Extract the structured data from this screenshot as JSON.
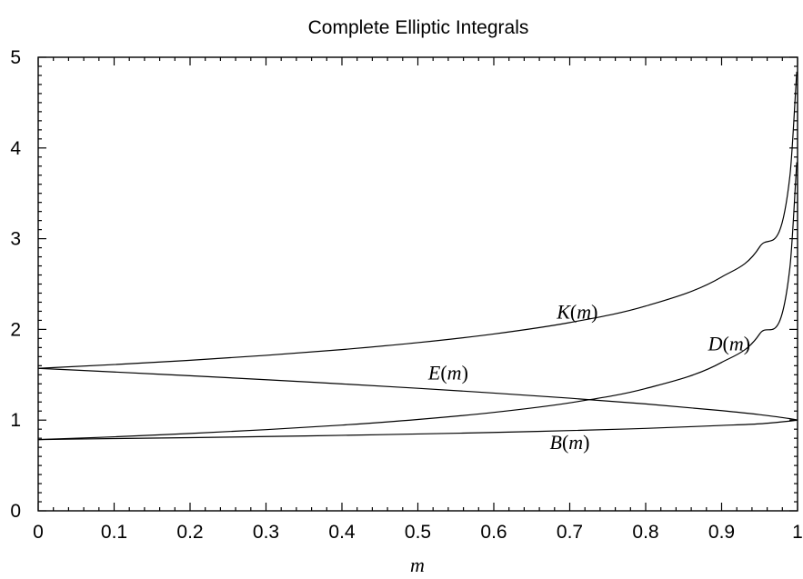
{
  "chart_data": {
    "type": "line",
    "title": "Complete Elliptic Integrals",
    "xlabel": "m",
    "ylabel": "",
    "xlim": [
      0,
      1
    ],
    "ylim": [
      0,
      5
    ],
    "xticks": [
      "0",
      "0.1",
      "0.2",
      "0.3",
      "0.4",
      "0.5",
      "0.6",
      "0.7",
      "0.8",
      "0.9",
      "1"
    ],
    "yticks": [
      "0",
      "1",
      "2",
      "3",
      "4",
      "5"
    ],
    "grid": false,
    "legend": "none",
    "x": [
      0,
      0.1,
      0.2,
      0.3,
      0.4,
      0.5,
      0.6,
      0.7,
      0.8,
      0.9,
      0.95,
      0.99,
      0.999
    ],
    "series": [
      {
        "name": "K",
        "values": [
          1.5708,
          1.6124,
          1.6596,
          1.7139,
          1.7775,
          1.8541,
          1.9496,
          2.0754,
          2.2572,
          2.5781,
          2.9083,
          3.6956,
          4.8411
        ]
      },
      {
        "name": "E",
        "values": [
          1.5708,
          1.5308,
          1.489,
          1.4454,
          1.3994,
          1.3506,
          1.2984,
          1.2417,
          1.1785,
          1.1048,
          1.0605,
          1.016,
          1.0021
        ]
      },
      {
        "name": "D",
        "values": [
          0.7854,
          0.816,
          0.8531,
          0.895,
          0.9452,
          1.007,
          1.0853,
          1.1907,
          1.3484,
          1.6366,
          1.9488,
          2.6867,
          3.8426
        ]
      },
      {
        "name": "B",
        "values": [
          0.7854,
          0.7964,
          0.8065,
          0.8189,
          0.8323,
          0.8471,
          0.8643,
          0.8847,
          0.9088,
          0.9415,
          0.9594,
          0.9898,
          0.9985
        ]
      }
    ],
    "annotations": [
      {
        "series": "K",
        "fn": "K",
        "arg": "m",
        "x": 0.71,
        "y": 2.12
      },
      {
        "series": "D",
        "fn": "D",
        "arg": "m",
        "x": 0.91,
        "y": 1.77
      },
      {
        "series": "E",
        "fn": "E",
        "arg": "m",
        "x": 0.54,
        "y": 1.45
      },
      {
        "series": "B",
        "fn": "B",
        "arg": "m",
        "x": 0.7,
        "y": 0.68
      }
    ]
  }
}
